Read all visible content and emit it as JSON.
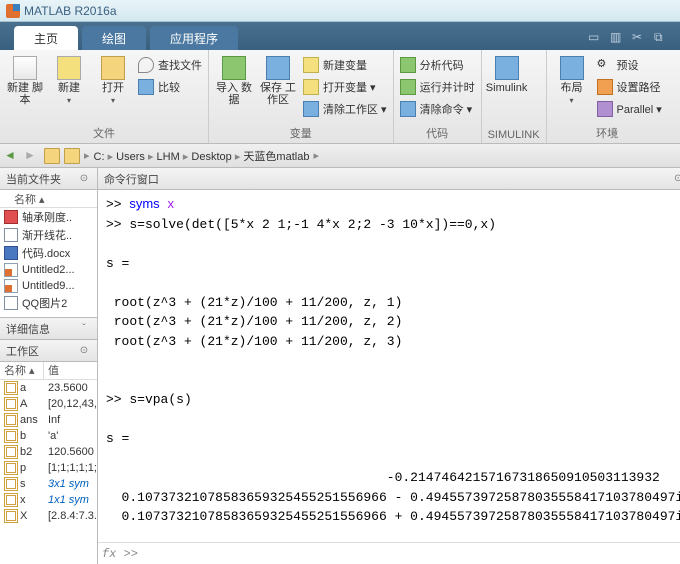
{
  "app_title": "MATLAB R2016a",
  "tabs": {
    "home": "主页",
    "plot": "绘图",
    "apps": "应用程序"
  },
  "ribbon": {
    "file": {
      "label": "文件",
      "new_script": "新建\n脚本",
      "new": "新建",
      "open": "打开",
      "find_files": "查找文件",
      "compare": "比较"
    },
    "variable": {
      "label": "变量",
      "import": "导入\n数据",
      "save_ws": "保存\n工作区",
      "new_var": "新建变量",
      "open_var": "打开变量 ▾",
      "clear_ws": "清除工作区 ▾"
    },
    "code": {
      "label": "代码",
      "analyze": "分析代码",
      "run_time": "运行并计时",
      "clear_cmd": "清除命令 ▾"
    },
    "simulink": {
      "label": "SIMULINK",
      "btn": "Simulink"
    },
    "env": {
      "label": "环境",
      "layout": "布局",
      "prefs": "预设",
      "set_path": "设置路径",
      "parallel": "Parallel ▾"
    }
  },
  "breadcrumb": [
    "C:",
    "Users",
    "LHM",
    "Desktop",
    "天蓝色matlab"
  ],
  "folder_panel": {
    "title": "当前文件夹",
    "col_name": "名称 ▴"
  },
  "files": [
    {
      "name": "轴承刚度..",
      "type": "pdf"
    },
    {
      "name": "渐开线花..",
      "type": "m"
    },
    {
      "name": "代码.docx",
      "type": "docx"
    },
    {
      "name": "Untitled2...",
      "type": "script"
    },
    {
      "name": "Untitled9...",
      "type": "script"
    },
    {
      "name": "QQ图片2",
      "type": "m"
    }
  ],
  "detail_panel": {
    "title": "详细信息"
  },
  "workspace": {
    "title": "工作区",
    "col_name": "名称 ▴",
    "col_value": "值",
    "rows": [
      {
        "n": "a",
        "v": "23.5600",
        "t": "num"
      },
      {
        "n": "A",
        "v": "[20,12,43,",
        "t": "num"
      },
      {
        "n": "ans",
        "v": "Inf",
        "t": "num"
      },
      {
        "n": "b",
        "v": "'a'",
        "t": "char"
      },
      {
        "n": "b2",
        "v": "120.5600",
        "t": "num"
      },
      {
        "n": "p",
        "v": "[1;1;1;1;1;",
        "t": "num"
      },
      {
        "n": "s",
        "v": "3x1 sym",
        "t": "sym"
      },
      {
        "n": "x",
        "v": "1x1 sym",
        "t": "sym"
      },
      {
        "n": "X",
        "v": "[2.8.4:7.3.",
        "t": "num"
      }
    ]
  },
  "cmd": {
    "title": "命令行窗口",
    "lines": [
      {
        "t": ">> ",
        "k": "syms",
        "r": " ",
        "s": "x"
      },
      {
        "t": ">> s=solve(det([5*x 2 1;-1 4*x 2;2 -3 10*x])==0,x)"
      },
      {
        "t": ""
      },
      {
        "t": "s ="
      },
      {
        "t": ""
      },
      {
        "t": " root(z^3 + (21*z)/100 + 11/200, z, 1)"
      },
      {
        "t": " root(z^3 + (21*z)/100 + 11/200, z, 2)"
      },
      {
        "t": " root(z^3 + (21*z)/100 + 11/200, z, 3)"
      },
      {
        "t": ""
      },
      {
        "t": ""
      },
      {
        "t": ">> s=vpa(s)"
      },
      {
        "t": ""
      },
      {
        "t": "s ="
      },
      {
        "t": ""
      },
      {
        "t": "                                    -0.21474642157167318650910503113932"
      },
      {
        "t": "  0.10737321078583659325455251556966 - 0.49455739725878035558417103780497i"
      },
      {
        "t": "  0.10737321078583659325455251556966 + 0.49455739725878035558417103780497i"
      }
    ],
    "prompt": "fx >>"
  },
  "colors": {
    "title_text": "#3a6080",
    "tab_active_bg": "#ffffff",
    "tab_inactive_bg": "#4a78a0",
    "ribbon_top": "#f6f6f6",
    "ribbon_bot": "#e4e4e4",
    "keyword": "#0000ff",
    "sym": "#a020f0",
    "ital_link": "#0060c0"
  }
}
